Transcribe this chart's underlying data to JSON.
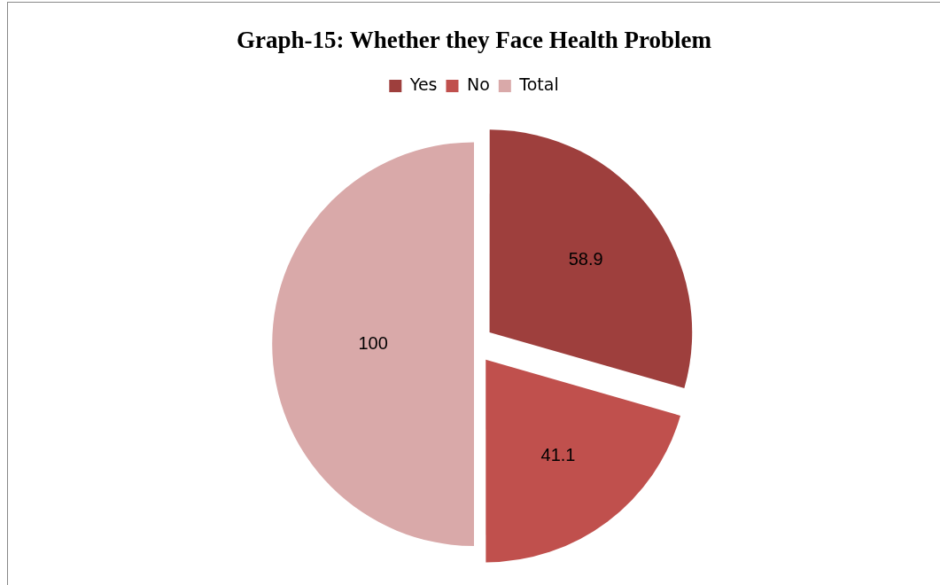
{
  "chart_data": {
    "type": "pie",
    "title": "Graph-15: Whether they Face Health Problem",
    "categories": [
      "Yes",
      "No",
      "Total"
    ],
    "values": [
      58.9,
      41.1,
      100
    ],
    "colors": [
      "#9e3f3d",
      "#c0504d",
      "#d9a9a9"
    ],
    "legend": "top",
    "data_labels": true
  }
}
